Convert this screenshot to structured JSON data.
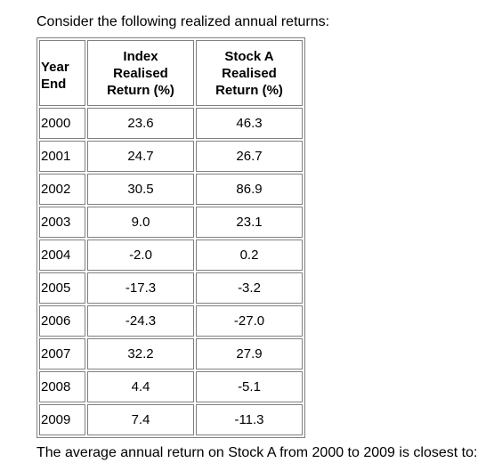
{
  "intro_text": "Consider the following realized annual returns:",
  "table": {
    "headers": {
      "year": [
        "Year",
        "End"
      ],
      "index": [
        "Index",
        "Realised",
        "Return (%)"
      ],
      "stock": [
        "Stock A",
        "Realised",
        "Return (%)"
      ]
    },
    "rows": [
      {
        "year": "2000",
        "index": "23.6",
        "stock": "46.3"
      },
      {
        "year": "2001",
        "index": "24.7",
        "stock": "26.7"
      },
      {
        "year": "2002",
        "index": "30.5",
        "stock": "86.9"
      },
      {
        "year": "2003",
        "index": "9.0",
        "stock": "23.1"
      },
      {
        "year": "2004",
        "index": "-2.0",
        "stock": "0.2"
      },
      {
        "year": "2005",
        "index": "-17.3",
        "stock": "-3.2"
      },
      {
        "year": "2006",
        "index": "-24.3",
        "stock": "-27.0"
      },
      {
        "year": "2007",
        "index": "32.2",
        "stock": "27.9"
      },
      {
        "year": "2008",
        "index": "4.4",
        "stock": "-5.1"
      },
      {
        "year": "2009",
        "index": "7.4",
        "stock": "-11.3"
      }
    ]
  },
  "question_text": "The average annual return on Stock A from 2000 to 2009 is closest to:",
  "colors": {
    "border": "#808080",
    "text": "#000000",
    "background": "#ffffff"
  }
}
